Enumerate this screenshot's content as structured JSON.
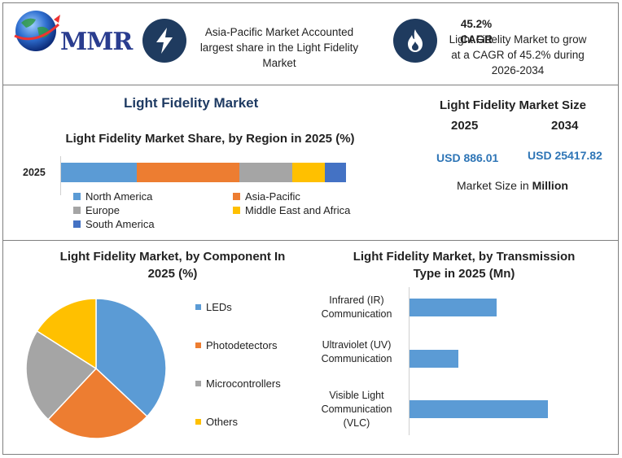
{
  "header": {
    "logo_text": "MMR",
    "box1_text": "Asia-Pacific Market Accounted largest share in the Light Fidelity Market",
    "box2_title": "45.2% CAGR",
    "box2_text": "Light Fidelity Market to grow at a CAGR of 45.2% during 2026-2034",
    "icon1": "lightning-icon",
    "icon2": "flame-icon"
  },
  "main_title": "Light Fidelity Market",
  "market_size": {
    "title": "Light Fidelity Market Size",
    "year1": "2025",
    "year2": "2034",
    "value1": "USD 886.01",
    "value2": "USD 25417.82",
    "unit_prefix": "Market Size in ",
    "unit_bold": "Million"
  },
  "colors": {
    "blue": "#5b9bd5",
    "orange": "#ed7d31",
    "gray": "#a5a5a5",
    "yellow": "#ffc000",
    "darkblue": "#4472c4",
    "navy": "#1f3b5f"
  },
  "chart_data": [
    {
      "type": "bar",
      "orientation": "horizontal-stacked",
      "title": "Light Fidelity Market Share, by Region in 2025 (%)",
      "categories": [
        "2025"
      ],
      "series": [
        {
          "name": "North America",
          "values": [
            26.5
          ],
          "color": "#5b9bd5"
        },
        {
          "name": "Asia-Pacific",
          "values": [
            36
          ],
          "color": "#ed7d31"
        },
        {
          "name": "Europe",
          "values": [
            18.5
          ],
          "color": "#a5a5a5"
        },
        {
          "name": "Middle East and Africa",
          "values": [
            11.5
          ],
          "color": "#ffc000"
        },
        {
          "name": "South America",
          "values": [
            7.5
          ],
          "color": "#4472c4"
        }
      ],
      "legend": "bottom"
    },
    {
      "type": "pie",
      "title": "Light Fidelity Market, by Component In 2025 (%)",
      "slices": [
        {
          "name": "LEDs",
          "value": 37,
          "color": "#5b9bd5"
        },
        {
          "name": "Photodetectors",
          "value": 25,
          "color": "#ed7d31"
        },
        {
          "name": "Microcontrollers",
          "value": 22,
          "color": "#a5a5a5"
        },
        {
          "name": "Others",
          "value": 16,
          "color": "#ffc000"
        }
      ],
      "legend": "right"
    },
    {
      "type": "bar",
      "orientation": "horizontal",
      "title": "Light Fidelity Market, by Transmission Type in 2025 (Mn)",
      "categories": [
        "Infrared (IR) Communication",
        "Ultraviolet (UV) Communication",
        "Visible Light Communication (VLC)"
      ],
      "values": [
        107,
        60,
        170
      ],
      "color": "#5b9bd5"
    }
  ]
}
